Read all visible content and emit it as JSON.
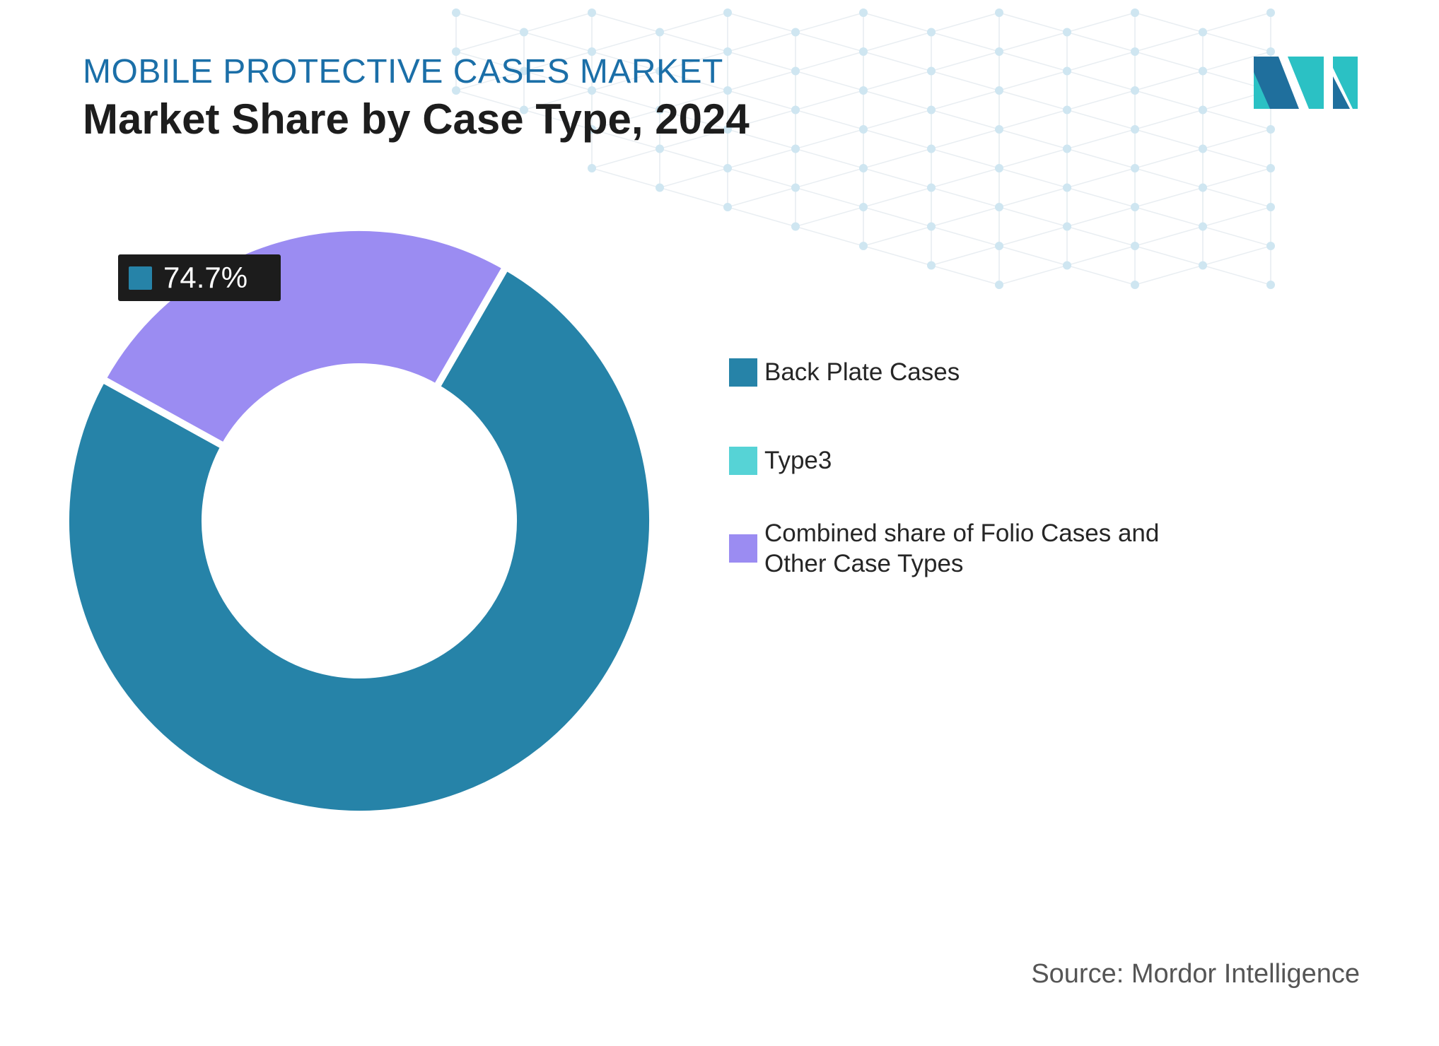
{
  "header": {
    "supertitle": "MOBILE PROTECTIVE CASES MARKET",
    "title": "Market Share by Case Type, 2024"
  },
  "source": "Source: Mordor Intelligence",
  "logo": {
    "icon": "mordor-intelligence-logo",
    "colors": [
      "#1f6f9d",
      "#2bc1c4",
      "#2a8fb0"
    ]
  },
  "background": {
    "pattern": "hexagon-network",
    "node_color": "#cfe6f1",
    "line_color": "#e9eef2"
  },
  "chart_data": {
    "type": "pie",
    "style": "donut",
    "title": "Market Share by Case Type, 2024",
    "labels": [
      "Back Plate Cases",
      "Type3",
      "Combined share of Folio Cases and Other Case Types"
    ],
    "values": [
      74.7,
      0,
      25.3
    ],
    "colors": [
      "#2683a8",
      "#56d3d6",
      "#9b8cf2"
    ],
    "data_labels": [
      {
        "series_index": 0,
        "text": "74.7%"
      }
    ],
    "legend": "right",
    "unit": "%"
  }
}
